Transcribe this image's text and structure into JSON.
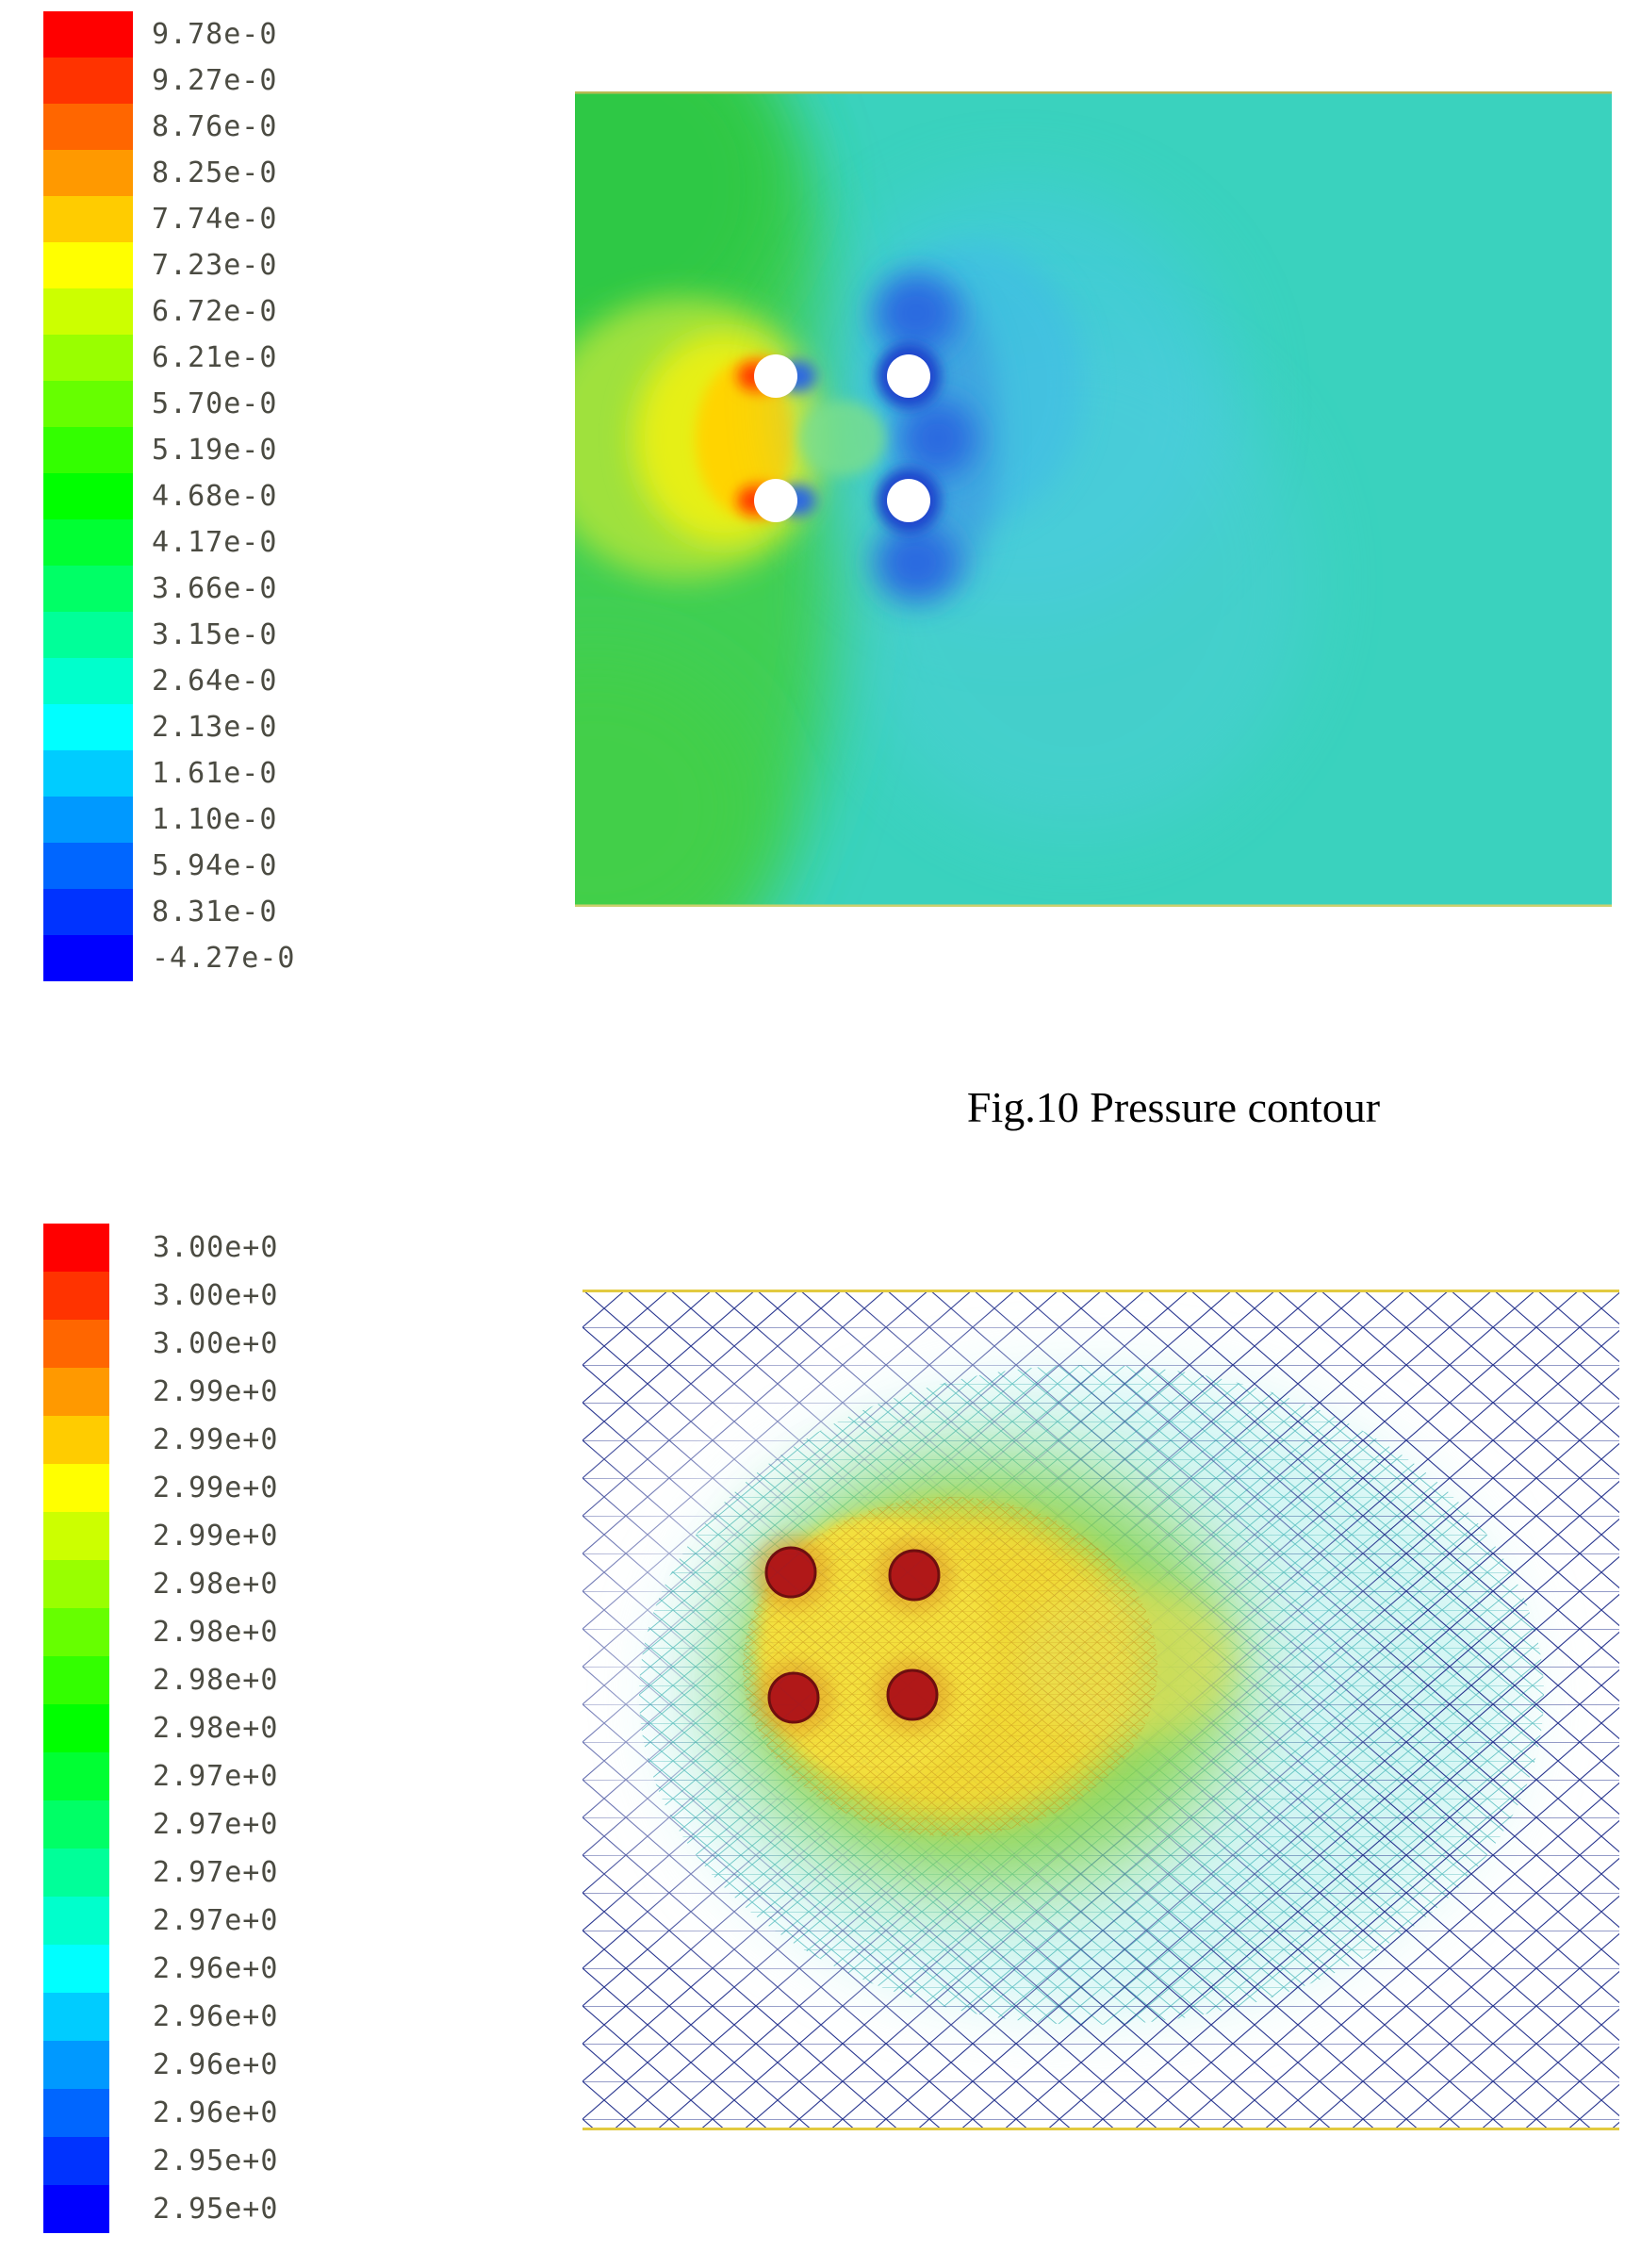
{
  "page": {
    "background_color": "#ffffff"
  },
  "colormap": [
    "#ff0000",
    "#ff3300",
    "#ff6600",
    "#ff9900",
    "#ffcc00",
    "#ffff00",
    "#ccff00",
    "#99ff00",
    "#66ff00",
    "#33ff00",
    "#00ff00",
    "#00ff33",
    "#00ff66",
    "#00ff99",
    "#00ffcc",
    "#00ffff",
    "#00ccff",
    "#0099ff",
    "#0066ff",
    "#0033ff",
    "#0000ff"
  ],
  "pressure_figure": {
    "caption": "Fig.10 Pressure contour",
    "legend_labels": [
      "9.78e-0",
      "9.27e-0",
      "8.76e-0",
      "8.25e-0",
      "7.74e-0",
      "7.23e-0",
      "6.72e-0",
      "6.21e-0",
      "5.70e-0",
      "5.19e-0",
      "4.68e-0",
      "4.17e-0",
      "3.66e-0",
      "3.15e-0",
      "2.64e-0",
      "2.13e-0",
      "1.61e-0",
      "1.10e-0",
      "5.94e-0",
      "8.31e-0",
      "-4.27e-0"
    ],
    "plot_colors": {
      "field_background": "#3ad2be",
      "inlet_green": "#3fcf52",
      "stagnation_red": "#ff2a00",
      "stagnation_orange": "#ff8800",
      "high_band_yellow": "#ffd400",
      "wake_light_blue": "#49c8e8",
      "low_pressure_blue": "#2053d8",
      "cylinder_white": "#ffffff"
    }
  },
  "mesh_figure": {
    "legend_labels": [
      "3.00e+0",
      "3.00e+0",
      "3.00e+0",
      "2.99e+0",
      "2.99e+0",
      "2.99e+0",
      "2.99e+0",
      "2.98e+0",
      "2.98e+0",
      "2.98e+0",
      "2.98e+0",
      "2.97e+0",
      "2.97e+0",
      "2.97e+0",
      "2.97e+0",
      "2.96e+0",
      "2.96e+0",
      "2.96e+0",
      "2.96e+0",
      "2.95e+0",
      "2.95e+0"
    ],
    "plot_colors": {
      "background": "#ffffff",
      "outer_mesh_navy": "#2a3790",
      "mid_mesh_cyan": "#3ab0b4",
      "hot_zone_yellow": "#f1d934",
      "green_ring": "#84d34c",
      "cylinder_red": "#b01818",
      "boundary_yellow": "#e2ca40"
    }
  }
}
